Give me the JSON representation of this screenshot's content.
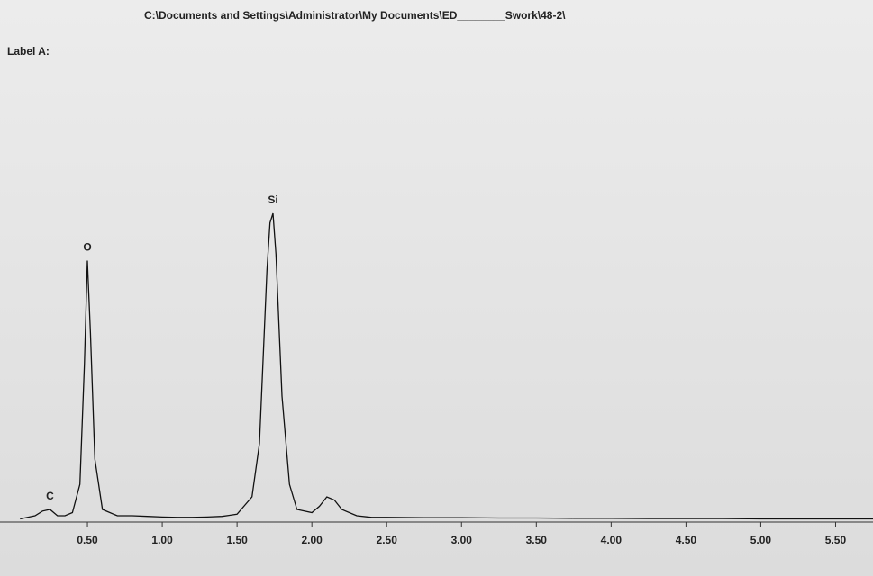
{
  "chart_data": {
    "type": "line",
    "header_path": "C:\\Documents and Settings\\Administrator\\My Documents\\ED________Swork\\48-2\\",
    "label": "Label A:",
    "x": [
      0.05,
      0.1,
      0.15,
      0.2,
      0.25,
      0.3,
      0.35,
      0.4,
      0.45,
      0.48,
      0.5,
      0.52,
      0.55,
      0.6,
      0.7,
      0.8,
      0.9,
      1.0,
      1.1,
      1.2,
      1.3,
      1.4,
      1.5,
      1.6,
      1.65,
      1.7,
      1.72,
      1.74,
      1.76,
      1.8,
      1.85,
      1.9,
      2.0,
      2.05,
      2.1,
      2.15,
      2.2,
      2.3,
      2.4,
      2.5,
      2.75,
      3.0,
      3.25,
      3.5,
      3.75,
      4.0,
      4.25,
      4.5,
      4.75,
      5.0,
      5.25,
      5.5,
      5.75
    ],
    "series": [
      {
        "color": "#111111",
        "values": [
          1,
          1.5,
          2,
          3.5,
          4,
          2,
          2,
          3,
          12,
          50,
          83,
          60,
          20,
          4,
          2,
          2,
          1.8,
          1.6,
          1.5,
          1.5,
          1.6,
          1.8,
          2.5,
          8,
          25,
          80,
          95,
          98,
          85,
          40,
          12,
          4,
          3,
          5,
          8,
          7,
          4,
          2,
          1.5,
          1.5,
          1.4,
          1.4,
          1.3,
          1.3,
          1.2,
          1.2,
          1.1,
          1.1,
          1.1,
          1,
          1,
          1,
          1
        ]
      }
    ],
    "annotations": [
      {
        "text": "C",
        "x": 0.25,
        "y": 8
      },
      {
        "text": "O",
        "x": 0.5,
        "y": 87
      },
      {
        "text": "Si",
        "x": 1.74,
        "y": 102
      }
    ],
    "xlim": [
      0,
      5.75
    ],
    "ylim": [
      0,
      100
    ],
    "xticks": [
      {
        "value": 0.5,
        "label": "0.50"
      },
      {
        "value": 1,
        "label": "1.00"
      },
      {
        "value": 1.5,
        "label": "1.50"
      },
      {
        "value": 2,
        "label": "2.00"
      },
      {
        "value": 2.5,
        "label": "2.50"
      },
      {
        "value": 3,
        "label": "3.00"
      },
      {
        "value": 3.5,
        "label": "3.50"
      },
      {
        "value": 4,
        "label": "4.00"
      },
      {
        "value": 4.5,
        "label": "4.50"
      },
      {
        "value": 5,
        "label": "5.00"
      },
      {
        "value": 5.5,
        "label": "5.50"
      }
    ]
  }
}
